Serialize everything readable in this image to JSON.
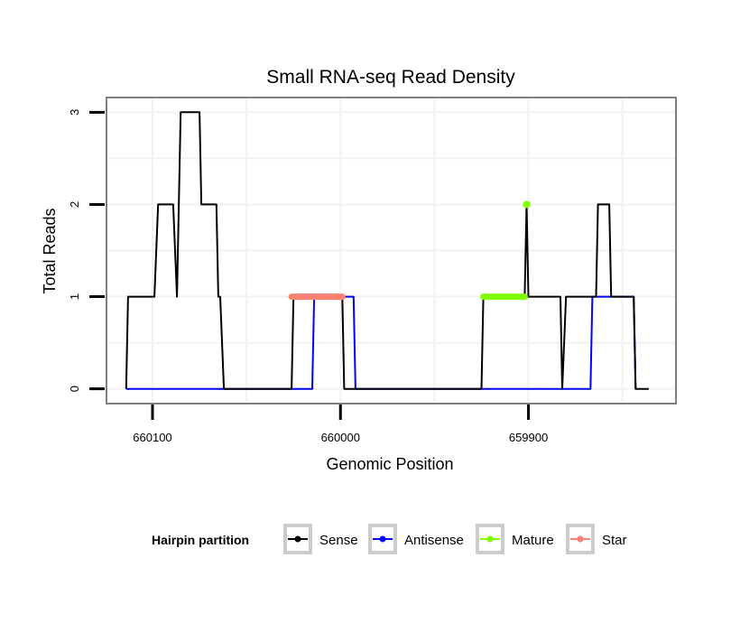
{
  "chart_data": {
    "type": "line",
    "title": "Small RNA-seq Read Density",
    "xlabel": "Genomic Position",
    "ylabel": "Total Reads",
    "x_reversed": true,
    "xlim": [
      660124,
      659822
    ],
    "ylim": [
      -0.15,
      3.15
    ],
    "x_ticks": [
      660100,
      660000,
      659900
    ],
    "x_tick_labels": [
      "660100",
      "660000",
      "659900"
    ],
    "y_ticks": [
      0,
      1,
      2,
      3
    ],
    "y_tick_labels": [
      "0",
      "1",
      "2",
      "3"
    ],
    "grid": true,
    "legend": {
      "title": "Hairpin partition",
      "position": "bottom",
      "entries": [
        {
          "name": "Sense",
          "color": "#000000"
        },
        {
          "name": "Antisense",
          "color": "#0000ff"
        },
        {
          "name": "Mature",
          "color": "#7fff00"
        },
        {
          "name": "Star",
          "color": "#fa8072"
        }
      ]
    },
    "series": [
      {
        "name": "Sense",
        "color": "#000000",
        "points": [
          [
            660114,
            0
          ],
          [
            660113,
            1
          ],
          [
            660099,
            1
          ],
          [
            660097,
            2
          ],
          [
            660089,
            2
          ],
          [
            660087,
            1
          ],
          [
            660085,
            3
          ],
          [
            660075,
            3
          ],
          [
            660074,
            2
          ],
          [
            660066,
            2
          ],
          [
            660065,
            1
          ],
          [
            660064,
            1
          ],
          [
            660062,
            0
          ],
          [
            660026,
            0
          ],
          [
            660025,
            1
          ],
          [
            659999,
            1
          ],
          [
            659998,
            0
          ],
          [
            659925,
            0
          ],
          [
            659924,
            1
          ],
          [
            659902,
            1
          ],
          [
            659901,
            2
          ],
          [
            659900,
            1
          ],
          [
            659883,
            1
          ],
          [
            659882,
            0
          ],
          [
            659880,
            1
          ],
          [
            659864,
            1
          ],
          [
            659863,
            2
          ],
          [
            659857,
            2
          ],
          [
            659856,
            1
          ],
          [
            659844,
            1
          ],
          [
            659843,
            0
          ],
          [
            659836,
            0
          ]
        ]
      },
      {
        "name": "Antisense",
        "color": "#0000ff",
        "points": [
          [
            660114,
            0
          ],
          [
            660015,
            0
          ],
          [
            660014,
            1
          ],
          [
            659993,
            1
          ],
          [
            659992,
            0
          ],
          [
            659867,
            0
          ],
          [
            659866,
            1
          ],
          [
            659844,
            1
          ],
          [
            659843,
            0
          ]
        ]
      },
      {
        "name": "Mature",
        "color": "#7fff00",
        "points": [
          [
            659924,
            1
          ],
          [
            659902,
            1
          ]
        ],
        "extra_points": [
          [
            659901,
            2
          ]
        ]
      },
      {
        "name": "Star",
        "color": "#fa8072",
        "points": [
          [
            660026,
            1
          ],
          [
            659999,
            1
          ]
        ]
      }
    ]
  }
}
